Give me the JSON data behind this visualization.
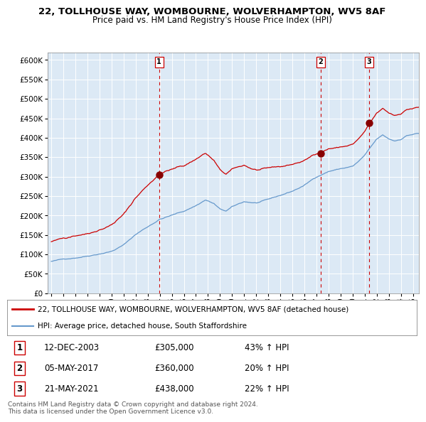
{
  "title1": "22, TOLLHOUSE WAY, WOMBOURNE, WOLVERHAMPTON, WV5 8AF",
  "title2": "Price paid vs. HM Land Registry's House Price Index (HPI)",
  "bg_color": "#dce9f5",
  "red_line_color": "#cc0000",
  "blue_line_color": "#6699cc",
  "sale_marker_color": "#880000",
  "dashed_line_color": "#cc0000",
  "ylim": [
    0,
    620000
  ],
  "yticks": [
    0,
    50000,
    100000,
    150000,
    200000,
    250000,
    300000,
    350000,
    400000,
    450000,
    500000,
    550000,
    600000
  ],
  "xlim_start": 1994.7,
  "xlim_end": 2025.5,
  "xticks": [
    1995,
    1996,
    1997,
    1998,
    1999,
    2000,
    2001,
    2002,
    2003,
    2004,
    2005,
    2006,
    2007,
    2008,
    2009,
    2010,
    2011,
    2012,
    2013,
    2014,
    2015,
    2016,
    2017,
    2018,
    2019,
    2020,
    2021,
    2022,
    2023,
    2024,
    2025
  ],
  "sale1_x": 2003.95,
  "sale1_y": 305000,
  "sale2_x": 2017.35,
  "sale2_y": 360000,
  "sale3_x": 2021.38,
  "sale3_y": 438000,
  "table_rows": [
    {
      "num": "1",
      "date": "12-DEC-2003",
      "price": "£305,000",
      "hpi": "43% ↑ HPI"
    },
    {
      "num": "2",
      "date": "05-MAY-2017",
      "price": "£360,000",
      "hpi": "20% ↑ HPI"
    },
    {
      "num": "3",
      "date": "21-MAY-2021",
      "price": "£438,000",
      "hpi": "22% ↑ HPI"
    }
  ],
  "legend_red_label": "22, TOLLHOUSE WAY, WOMBOURNE, WOLVERHAMPTON, WV5 8AF (detached house)",
  "legend_blue_label": "HPI: Average price, detached house, South Staffordshire",
  "footer1": "Contains HM Land Registry data © Crown copyright and database right 2024.",
  "footer2": "This data is licensed under the Open Government Licence v3.0."
}
